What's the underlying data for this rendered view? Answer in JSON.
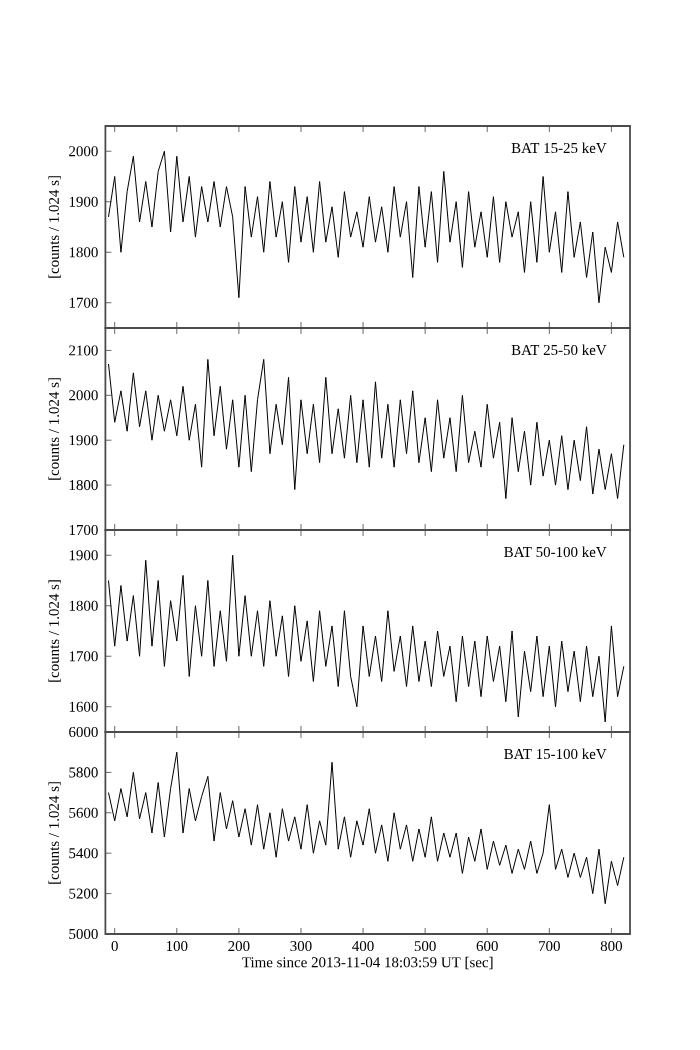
{
  "chart_data": [
    {
      "type": "line",
      "annotations": [
        "BAT 15-25 keV"
      ],
      "ylabel": "[counts / 1.024 s]",
      "xlim": [
        -15,
        830
      ],
      "ylim": [
        1650,
        2050
      ],
      "xticks": [
        0,
        100,
        200,
        300,
        400,
        500,
        600,
        700,
        800
      ],
      "yticks": [
        1700,
        1800,
        1900,
        2000
      ],
      "tick_labels": "y",
      "series": [
        {
          "color": "#000000",
          "x": [
            -10,
            0,
            10,
            20,
            30,
            40,
            50,
            60,
            70,
            80,
            90,
            100,
            110,
            120,
            130,
            140,
            150,
            160,
            170,
            180,
            190,
            200,
            210,
            220,
            230,
            240,
            250,
            260,
            270,
            280,
            290,
            300,
            310,
            320,
            330,
            340,
            350,
            360,
            370,
            380,
            390,
            400,
            410,
            420,
            430,
            440,
            450,
            460,
            470,
            480,
            490,
            500,
            510,
            520,
            530,
            540,
            550,
            560,
            570,
            580,
            590,
            600,
            610,
            620,
            630,
            640,
            650,
            660,
            670,
            680,
            690,
            700,
            710,
            720,
            730,
            740,
            750,
            760,
            770,
            780,
            790,
            800,
            810,
            820
          ],
          "values": [
            1870,
            1950,
            1800,
            1920,
            1990,
            1860,
            1940,
            1850,
            1960,
            2000,
            1840,
            1990,
            1860,
            1950,
            1830,
            1930,
            1860,
            1940,
            1850,
            1930,
            1870,
            1710,
            1930,
            1830,
            1910,
            1800,
            1940,
            1830,
            1900,
            1780,
            1930,
            1820,
            1910,
            1800,
            1940,
            1820,
            1890,
            1790,
            1920,
            1830,
            1880,
            1810,
            1910,
            1820,
            1890,
            1800,
            1930,
            1830,
            1900,
            1750,
            1930,
            1810,
            1920,
            1780,
            1960,
            1820,
            1900,
            1770,
            1920,
            1810,
            1880,
            1790,
            1910,
            1780,
            1900,
            1830,
            1880,
            1760,
            1900,
            1780,
            1950,
            1800,
            1880,
            1760,
            1920,
            1790,
            1860,
            1750,
            1840,
            1700,
            1810,
            1760,
            1860,
            1790
          ]
        }
      ]
    },
    {
      "type": "line",
      "annotations": [
        "BAT 25-50 keV"
      ],
      "ylabel": "[counts / 1.024 s]",
      "xlim": [
        -15,
        830
      ],
      "ylim": [
        1700,
        2150
      ],
      "xticks": [
        0,
        100,
        200,
        300,
        400,
        500,
        600,
        700,
        800
      ],
      "yticks": [
        1700,
        1800,
        1900,
        2000,
        2100
      ],
      "tick_labels": "y",
      "series": [
        {
          "color": "#000000",
          "x": [
            -10,
            0,
            10,
            20,
            30,
            40,
            50,
            60,
            70,
            80,
            90,
            100,
            110,
            120,
            130,
            140,
            150,
            160,
            170,
            180,
            190,
            200,
            210,
            220,
            230,
            240,
            250,
            260,
            270,
            280,
            290,
            300,
            310,
            320,
            330,
            340,
            350,
            360,
            370,
            380,
            390,
            400,
            410,
            420,
            430,
            440,
            450,
            460,
            470,
            480,
            490,
            500,
            510,
            520,
            530,
            540,
            550,
            560,
            570,
            580,
            590,
            600,
            610,
            620,
            630,
            640,
            650,
            660,
            670,
            680,
            690,
            700,
            710,
            720,
            730,
            740,
            750,
            760,
            770,
            780,
            790,
            800,
            810,
            820
          ],
          "values": [
            2070,
            1940,
            2010,
            1920,
            2050,
            1930,
            2010,
            1900,
            2000,
            1920,
            1990,
            1910,
            2020,
            1900,
            1980,
            1840,
            2080,
            1910,
            2020,
            1880,
            1990,
            1840,
            2000,
            1830,
            1990,
            2080,
            1870,
            1980,
            1890,
            2040,
            1790,
            1990,
            1870,
            1980,
            1850,
            2040,
            1870,
            1970,
            1860,
            2000,
            1850,
            1990,
            1840,
            2030,
            1860,
            1980,
            1840,
            1990,
            1870,
            2010,
            1850,
            1950,
            1830,
            1990,
            1860,
            1950,
            1830,
            2000,
            1850,
            1920,
            1840,
            1980,
            1860,
            1940,
            1770,
            1950,
            1830,
            1920,
            1800,
            1940,
            1820,
            1900,
            1800,
            1910,
            1790,
            1900,
            1810,
            1930,
            1780,
            1880,
            1790,
            1870,
            1770,
            1890
          ]
        }
      ]
    },
    {
      "type": "line",
      "annotations": [
        "BAT 50-100 keV"
      ],
      "ylabel": "[counts / 1.024 s]",
      "xlim": [
        -15,
        830
      ],
      "ylim": [
        1550,
        1950
      ],
      "xticks": [
        0,
        100,
        200,
        300,
        400,
        500,
        600,
        700,
        800
      ],
      "yticks": [
        1600,
        1700,
        1800,
        1900
      ],
      "tick_labels": "y",
      "series": [
        {
          "color": "#000000",
          "x": [
            -10,
            0,
            10,
            20,
            30,
            40,
            50,
            60,
            70,
            80,
            90,
            100,
            110,
            120,
            130,
            140,
            150,
            160,
            170,
            180,
            190,
            200,
            210,
            220,
            230,
            240,
            250,
            260,
            270,
            280,
            290,
            300,
            310,
            320,
            330,
            340,
            350,
            360,
            370,
            380,
            390,
            400,
            410,
            420,
            430,
            440,
            450,
            460,
            470,
            480,
            490,
            500,
            510,
            520,
            530,
            540,
            550,
            560,
            570,
            580,
            590,
            600,
            610,
            620,
            630,
            640,
            650,
            660,
            670,
            680,
            690,
            700,
            710,
            720,
            730,
            740,
            750,
            760,
            770,
            780,
            790,
            800,
            810,
            820
          ],
          "values": [
            1850,
            1720,
            1840,
            1730,
            1820,
            1700,
            1890,
            1720,
            1850,
            1680,
            1810,
            1730,
            1860,
            1660,
            1800,
            1700,
            1850,
            1680,
            1790,
            1690,
            1900,
            1700,
            1820,
            1700,
            1790,
            1680,
            1810,
            1700,
            1780,
            1660,
            1800,
            1690,
            1770,
            1650,
            1790,
            1680,
            1760,
            1640,
            1790,
            1660,
            1600,
            1760,
            1660,
            1740,
            1650,
            1790,
            1670,
            1740,
            1640,
            1760,
            1650,
            1730,
            1640,
            1750,
            1660,
            1720,
            1610,
            1740,
            1640,
            1730,
            1620,
            1740,
            1650,
            1720,
            1610,
            1750,
            1580,
            1710,
            1630,
            1740,
            1620,
            1720,
            1600,
            1730,
            1630,
            1710,
            1610,
            1720,
            1620,
            1700,
            1570,
            1760,
            1620,
            1680
          ]
        }
      ]
    },
    {
      "type": "line",
      "annotations": [
        "BAT 15-100 keV"
      ],
      "ylabel": "[counts / 1.024 s]",
      "xlabel": "Time since 2013-11-04 18:03:59 UT [sec]",
      "xlim": [
        -15,
        830
      ],
      "ylim": [
        5000,
        6000
      ],
      "xticks": [
        0,
        100,
        200,
        300,
        400,
        500,
        600,
        700,
        800
      ],
      "yticks": [
        5000,
        5200,
        5400,
        5600,
        5800,
        6000
      ],
      "series": [
        {
          "color": "#000000",
          "x": [
            -10,
            0,
            10,
            20,
            30,
            40,
            50,
            60,
            70,
            80,
            90,
            100,
            110,
            120,
            130,
            140,
            150,
            160,
            170,
            180,
            190,
            200,
            210,
            220,
            230,
            240,
            250,
            260,
            270,
            280,
            290,
            300,
            310,
            320,
            330,
            340,
            350,
            360,
            370,
            380,
            390,
            400,
            410,
            420,
            430,
            440,
            450,
            460,
            470,
            480,
            490,
            500,
            510,
            520,
            530,
            540,
            550,
            560,
            570,
            580,
            590,
            600,
            610,
            620,
            630,
            640,
            650,
            660,
            670,
            680,
            690,
            700,
            710,
            720,
            730,
            740,
            750,
            760,
            770,
            780,
            790,
            800,
            810,
            820
          ],
          "values": [
            5700,
            5560,
            5720,
            5580,
            5800,
            5570,
            5700,
            5500,
            5750,
            5480,
            5720,
            5900,
            5500,
            5720,
            5560,
            5680,
            5780,
            5460,
            5700,
            5520,
            5660,
            5480,
            5620,
            5440,
            5640,
            5420,
            5600,
            5380,
            5620,
            5460,
            5580,
            5420,
            5640,
            5400,
            5560,
            5440,
            5850,
            5420,
            5580,
            5380,
            5560,
            5440,
            5620,
            5400,
            5540,
            5360,
            5600,
            5420,
            5540,
            5360,
            5520,
            5380,
            5580,
            5360,
            5500,
            5380,
            5500,
            5300,
            5480,
            5360,
            5520,
            5320,
            5460,
            5340,
            5440,
            5300,
            5420,
            5320,
            5460,
            5300,
            5400,
            5640,
            5320,
            5420,
            5280,
            5400,
            5280,
            5380,
            5200,
            5420,
            5150,
            5360,
            5240,
            5380
          ]
        }
      ]
    }
  ]
}
